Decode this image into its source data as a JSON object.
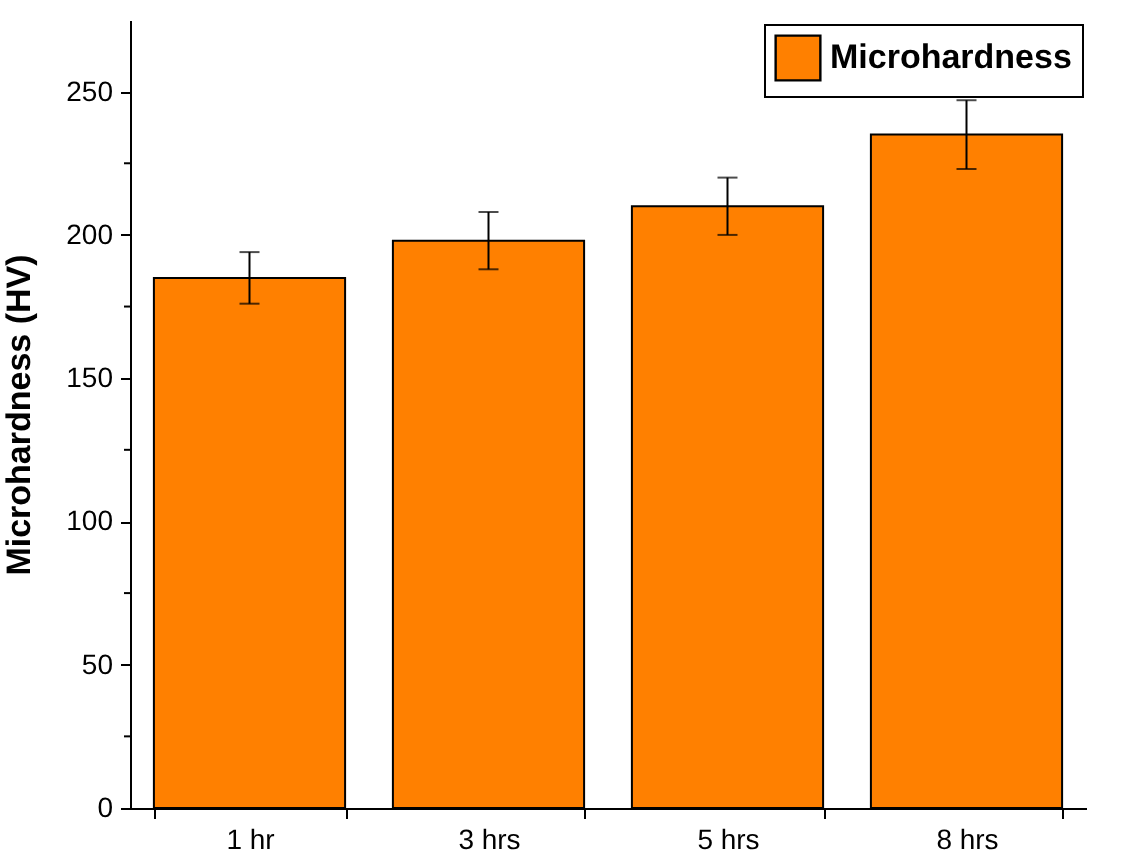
{
  "chart_data": {
    "type": "bar",
    "ylabel": "Microhardness (HV)",
    "categories": [
      "1 hr",
      "3 hrs",
      "5 hrs",
      "8 hrs"
    ],
    "series": [
      {
        "name": "Microhardness",
        "color": "#ff8000",
        "values": [
          185,
          198,
          210,
          235
        ],
        "errors": [
          [
            176,
            194
          ],
          [
            188,
            208
          ],
          [
            200,
            220
          ],
          [
            223,
            247
          ]
        ]
      }
    ],
    "ylim": [
      0,
      275
    ],
    "yticks": [
      0,
      {
        "value": 25,
        "label": null
      },
      50,
      {
        "value": 75,
        "label": null
      },
      100,
      {
        "value": 125,
        "label": null
      },
      150,
      {
        "value": 175,
        "label": null
      },
      200,
      {
        "value": 225,
        "label": null
      },
      250
    ],
    "legend": "top right"
  }
}
